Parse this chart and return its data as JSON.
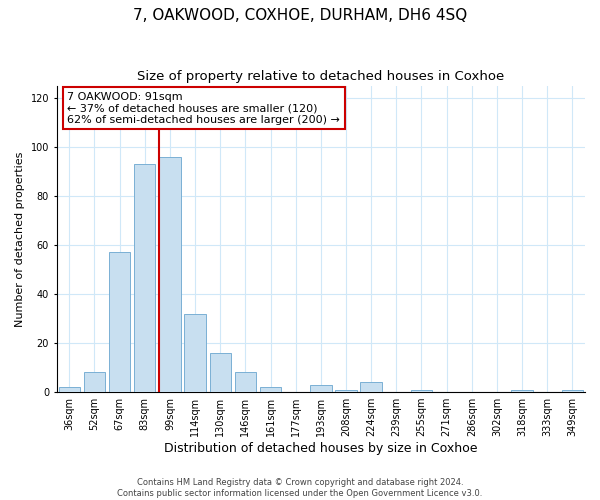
{
  "title": "7, OAKWOOD, COXHOE, DURHAM, DH6 4SQ",
  "subtitle": "Size of property relative to detached houses in Coxhoe",
  "xlabel": "Distribution of detached houses by size in Coxhoe",
  "ylabel": "Number of detached properties",
  "categories": [
    "36sqm",
    "52sqm",
    "67sqm",
    "83sqm",
    "99sqm",
    "114sqm",
    "130sqm",
    "146sqm",
    "161sqm",
    "177sqm",
    "193sqm",
    "208sqm",
    "224sqm",
    "239sqm",
    "255sqm",
    "271sqm",
    "286sqm",
    "302sqm",
    "318sqm",
    "333sqm",
    "349sqm"
  ],
  "values": [
    2,
    8,
    57,
    93,
    96,
    32,
    16,
    8,
    2,
    0,
    3,
    1,
    4,
    0,
    1,
    0,
    0,
    0,
    1,
    0,
    1
  ],
  "bar_color": "#c8dff0",
  "bar_edge_color": "#7ab0d4",
  "red_line_bar_index": 4,
  "annotation_title": "7 OAKWOOD: 91sqm",
  "annotation_line1": "← 37% of detached houses are smaller (120)",
  "annotation_line2": "62% of semi-detached houses are larger (200) →",
  "footer1": "Contains HM Land Registry data © Crown copyright and database right 2024.",
  "footer2": "Contains public sector information licensed under the Open Government Licence v3.0.",
  "ylim": [
    0,
    125
  ],
  "yticks": [
    0,
    20,
    40,
    60,
    80,
    100,
    120
  ],
  "red_line_color": "#cc0000",
  "box_edge_color": "#cc0000",
  "title_fontsize": 11,
  "subtitle_fontsize": 9.5,
  "tick_fontsize": 7,
  "ylabel_fontsize": 8,
  "xlabel_fontsize": 9,
  "footer_fontsize": 6,
  "annotation_fontsize": 8,
  "grid_color": "#d0e8f8",
  "bg_color": "#ffffff"
}
